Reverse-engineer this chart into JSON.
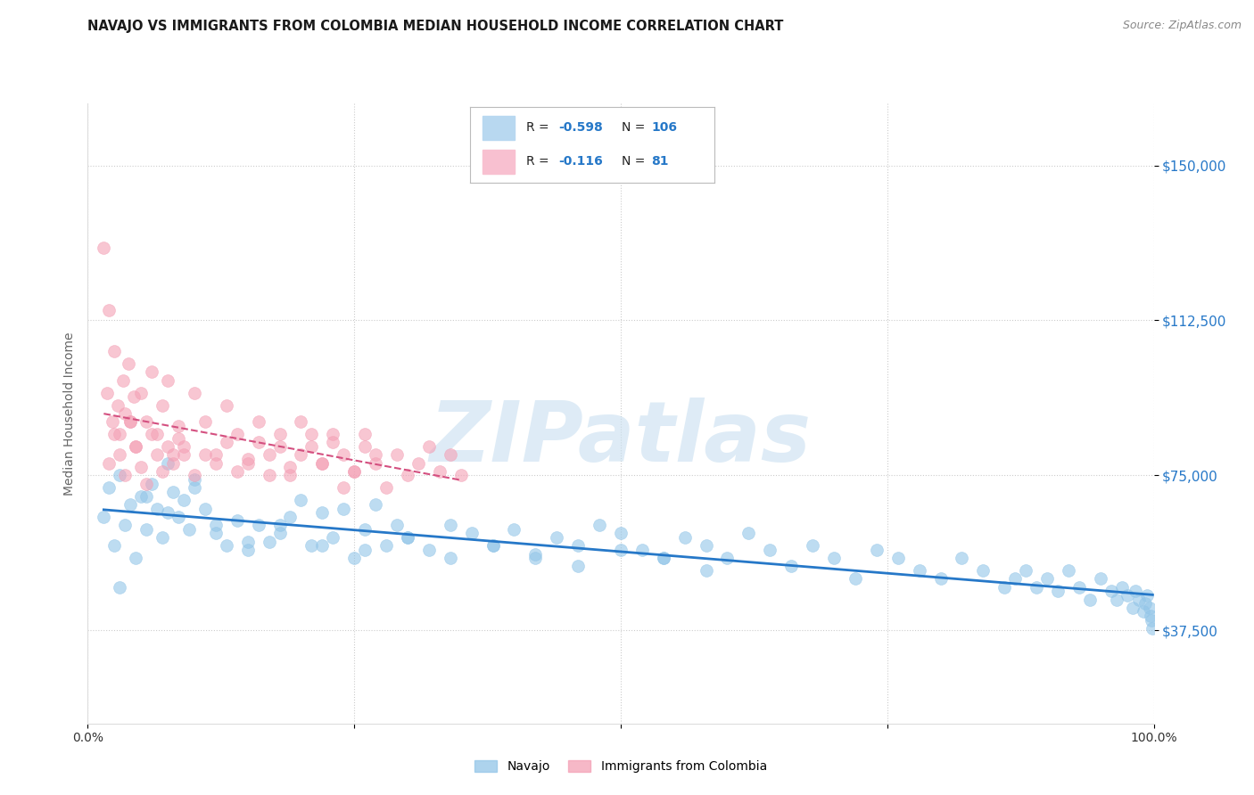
{
  "title": "NAVAJO VS IMMIGRANTS FROM COLOMBIA MEDIAN HOUSEHOLD INCOME CORRELATION CHART",
  "source": "Source: ZipAtlas.com",
  "ylabel": "Median Household Income",
  "y_ticks": [
    37500,
    75000,
    112500,
    150000
  ],
  "y_tick_labels": [
    "$37,500",
    "$75,000",
    "$112,500",
    "$150,000"
  ],
  "x_range": [
    0.0,
    100.0
  ],
  "y_range": [
    15000,
    165000
  ],
  "navajo_R": "-0.598",
  "navajo_N": "106",
  "colombia_R": "-0.116",
  "colombia_N": "81",
  "navajo_color": "#92c5e8",
  "colombia_color": "#f4a0b5",
  "navajo_line_color": "#2678c8",
  "colombia_line_color": "#d45080",
  "legend_box_navajo": "#b8d8f0",
  "legend_box_colombia": "#f8c0d0",
  "watermark": "ZIPatlas",
  "watermark_color": "#c8dff0",
  "title_fontsize": 10.5,
  "source_fontsize": 9,
  "navajo_x": [
    1.5,
    2.0,
    2.5,
    3.0,
    3.5,
    4.0,
    4.5,
    5.0,
    5.5,
    6.0,
    6.5,
    7.0,
    7.5,
    8.0,
    8.5,
    9.0,
    9.5,
    10.0,
    11.0,
    12.0,
    13.0,
    14.0,
    15.0,
    16.0,
    17.0,
    18.0,
    19.0,
    20.0,
    21.0,
    22.0,
    23.0,
    24.0,
    25.0,
    26.0,
    27.0,
    28.0,
    29.0,
    30.0,
    32.0,
    34.0,
    36.0,
    38.0,
    40.0,
    42.0,
    44.0,
    46.0,
    48.0,
    50.0,
    52.0,
    54.0,
    56.0,
    58.0,
    60.0,
    62.0,
    64.0,
    66.0,
    68.0,
    70.0,
    72.0,
    74.0,
    76.0,
    78.0,
    80.0,
    82.0,
    84.0,
    86.0,
    87.0,
    88.0,
    89.0,
    90.0,
    91.0,
    92.0,
    93.0,
    94.0,
    95.0,
    96.0,
    96.5,
    97.0,
    97.5,
    98.0,
    98.3,
    98.6,
    99.0,
    99.2,
    99.4,
    99.6,
    99.7,
    99.8,
    99.9,
    3.0,
    5.5,
    7.5,
    10.0,
    12.0,
    15.0,
    18.0,
    22.0,
    26.0,
    30.0,
    34.0,
    38.0,
    42.0,
    46.0,
    50.0,
    54.0,
    58.0
  ],
  "navajo_y": [
    65000,
    72000,
    58000,
    75000,
    63000,
    68000,
    55000,
    70000,
    62000,
    73000,
    67000,
    60000,
    78000,
    71000,
    65000,
    69000,
    62000,
    74000,
    67000,
    61000,
    58000,
    64000,
    57000,
    63000,
    59000,
    61000,
    65000,
    69000,
    58000,
    66000,
    60000,
    67000,
    55000,
    62000,
    68000,
    58000,
    63000,
    60000,
    57000,
    63000,
    61000,
    58000,
    62000,
    55000,
    60000,
    58000,
    63000,
    61000,
    57000,
    55000,
    60000,
    58000,
    55000,
    61000,
    57000,
    53000,
    58000,
    55000,
    50000,
    57000,
    55000,
    52000,
    50000,
    55000,
    52000,
    48000,
    50000,
    52000,
    48000,
    50000,
    47000,
    52000,
    48000,
    45000,
    50000,
    47000,
    45000,
    48000,
    46000,
    43000,
    47000,
    45000,
    42000,
    44000,
    46000,
    43000,
    41000,
    40000,
    38000,
    48000,
    70000,
    66000,
    72000,
    63000,
    59000,
    63000,
    58000,
    57000,
    60000,
    55000,
    58000,
    56000,
    53000,
    57000,
    55000,
    52000
  ],
  "colombia_x": [
    1.5,
    1.8,
    2.0,
    2.3,
    2.5,
    2.8,
    3.0,
    3.3,
    3.5,
    3.8,
    4.0,
    4.3,
    4.5,
    5.0,
    5.5,
    6.0,
    6.5,
    7.0,
    7.5,
    8.0,
    8.5,
    9.0,
    10.0,
    11.0,
    12.0,
    13.0,
    14.0,
    15.0,
    16.0,
    17.0,
    18.0,
    19.0,
    20.0,
    21.0,
    22.0,
    23.0,
    24.0,
    25.0,
    26.0,
    27.0,
    28.0,
    29.0,
    30.0,
    31.0,
    32.0,
    33.0,
    34.0,
    35.0,
    2.0,
    2.5,
    3.0,
    3.5,
    4.0,
    4.5,
    5.0,
    5.5,
    6.0,
    6.5,
    7.0,
    7.5,
    8.0,
    8.5,
    9.0,
    10.0,
    11.0,
    12.0,
    13.0,
    14.0,
    15.0,
    16.0,
    17.0,
    18.0,
    19.0,
    20.0,
    21.0,
    22.0,
    23.0,
    24.0,
    25.0,
    26.0,
    27.0
  ],
  "colombia_y": [
    130000,
    95000,
    115000,
    88000,
    105000,
    92000,
    85000,
    98000,
    90000,
    102000,
    88000,
    94000,
    82000,
    95000,
    88000,
    100000,
    85000,
    92000,
    98000,
    80000,
    87000,
    82000,
    95000,
    88000,
    80000,
    92000,
    85000,
    78000,
    88000,
    80000,
    85000,
    75000,
    88000,
    82000,
    78000,
    85000,
    80000,
    76000,
    85000,
    80000,
    72000,
    80000,
    75000,
    78000,
    82000,
    76000,
    80000,
    75000,
    78000,
    85000,
    80000,
    75000,
    88000,
    82000,
    77000,
    73000,
    85000,
    80000,
    76000,
    82000,
    78000,
    84000,
    80000,
    75000,
    80000,
    78000,
    83000,
    76000,
    79000,
    83000,
    75000,
    82000,
    77000,
    80000,
    85000,
    78000,
    83000,
    72000,
    76000,
    82000,
    78000
  ]
}
